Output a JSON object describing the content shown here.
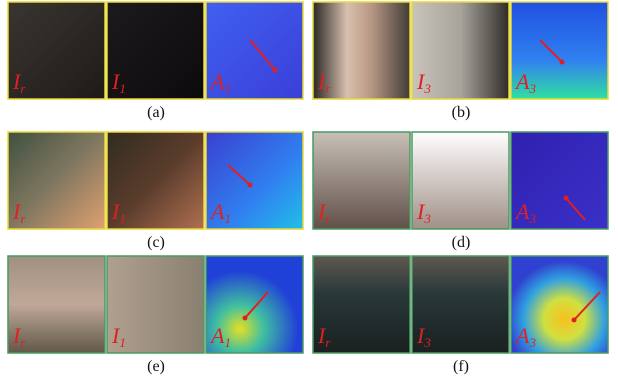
{
  "figures": [
    {
      "caption": "(a)",
      "images": [
        {
          "base": "I",
          "sub": "r"
        },
        {
          "base": "I",
          "sub": "1"
        },
        {
          "base": "A",
          "sub": "1"
        }
      ]
    },
    {
      "caption": "(b)",
      "images": [
        {
          "base": "I",
          "sub": "r"
        },
        {
          "base": "I",
          "sub": "3"
        },
        {
          "base": "A",
          "sub": "3"
        }
      ]
    },
    {
      "caption": "(c)",
      "images": [
        {
          "base": "I",
          "sub": "r"
        },
        {
          "base": "I",
          "sub": "1"
        },
        {
          "base": "A",
          "sub": "1"
        }
      ]
    },
    {
      "caption": "(d)",
      "images": [
        {
          "base": "I",
          "sub": "r"
        },
        {
          "base": "I",
          "sub": "3"
        },
        {
          "base": "A",
          "sub": "3"
        }
      ]
    },
    {
      "caption": "(e)",
      "images": [
        {
          "base": "I",
          "sub": "r"
        },
        {
          "base": "I",
          "sub": "1"
        },
        {
          "base": "A",
          "sub": "1"
        }
      ]
    },
    {
      "caption": "(f)",
      "images": [
        {
          "base": "I",
          "sub": "r"
        },
        {
          "base": "I",
          "sub": "3"
        },
        {
          "base": "A",
          "sub": "3"
        }
      ]
    }
  ]
}
